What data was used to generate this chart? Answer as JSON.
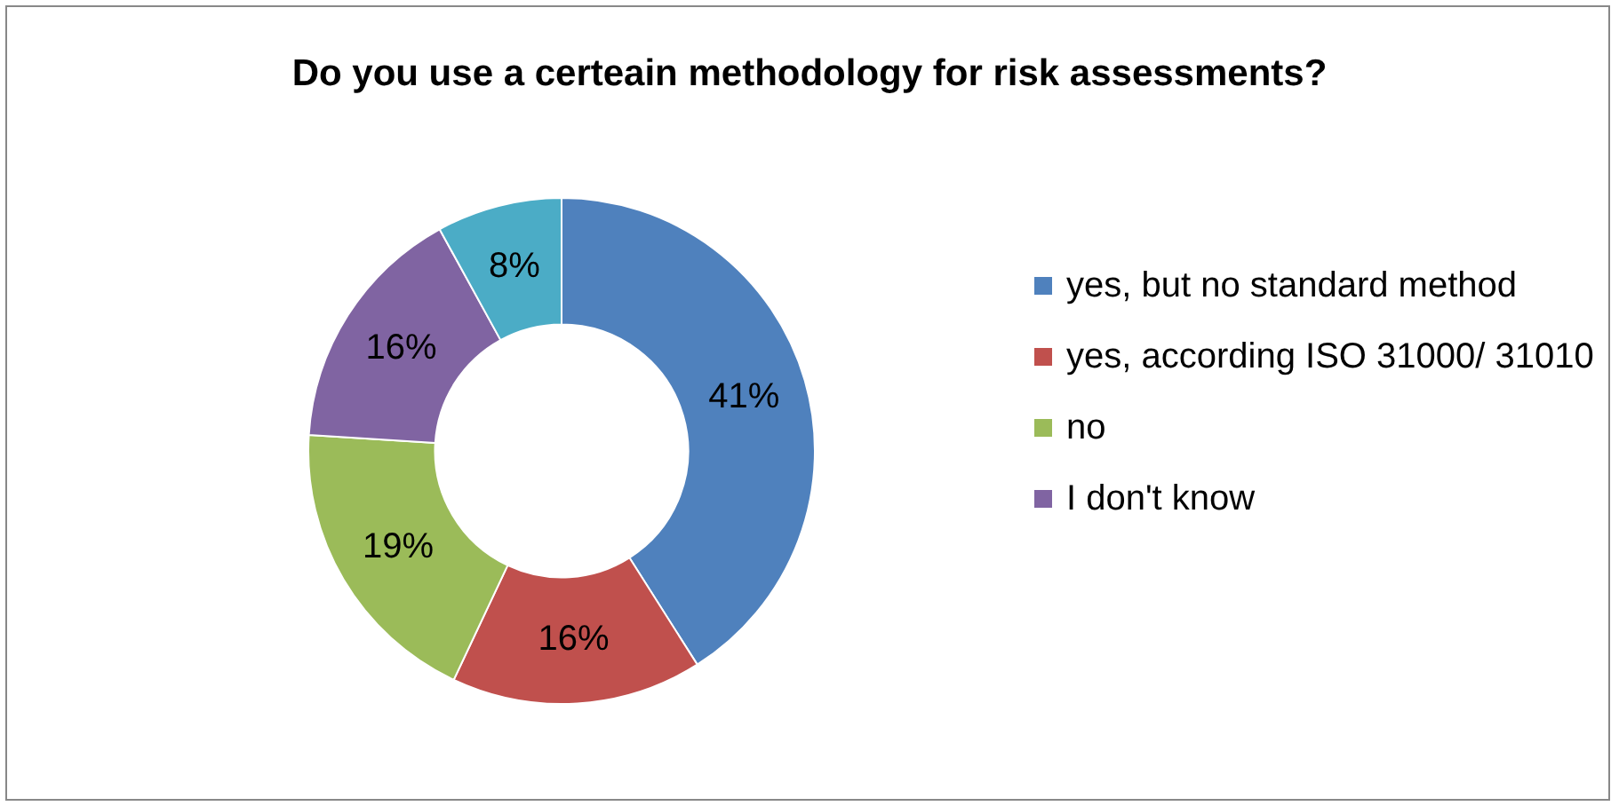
{
  "chart_data": {
    "type": "donut",
    "title": "Do you use a certeain methodology for risk assessments?",
    "categories": [
      "yes, but no standard method",
      "yes, according ISO 31000/ 31010",
      "no",
      "I don't know",
      null
    ],
    "values": [
      41,
      16,
      19,
      16,
      8
    ],
    "value_labels": [
      "41%",
      "16%",
      "19%",
      "16%",
      "8%"
    ],
    "colors": [
      "#4f81bd",
      "#c0504d",
      "#9bbb59",
      "#8064a2",
      "#4bacc6"
    ],
    "legend": "right"
  }
}
